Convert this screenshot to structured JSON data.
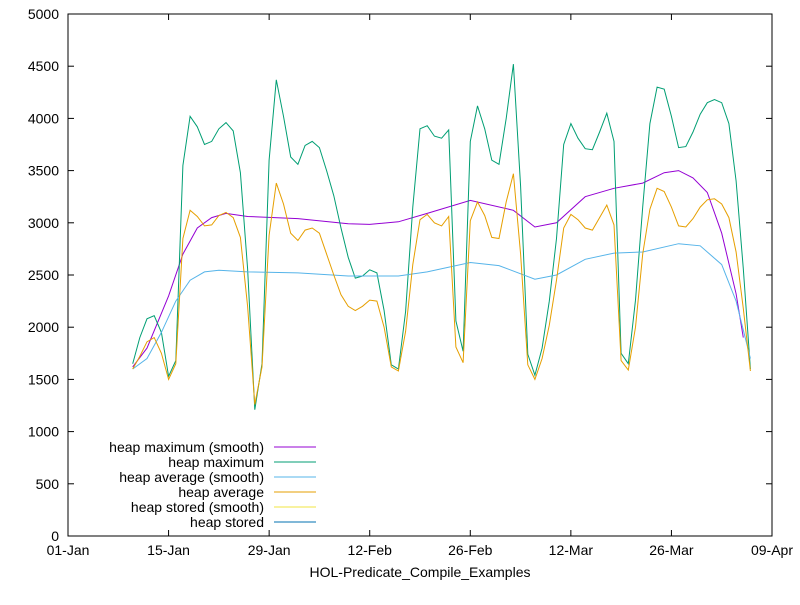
{
  "chart_data": {
    "type": "line",
    "title": "",
    "xlabel": "HOL-Predicate_Compile_Examples",
    "ylabel": "",
    "xlim": [
      "2025-01-01",
      "2025-04-09"
    ],
    "ylim": [
      0,
      5000
    ],
    "grid": false,
    "legend": "bottom-left",
    "x_ticks": [
      {
        "date": "2025-01-01",
        "label": "01-Jan"
      },
      {
        "date": "2025-01-15",
        "label": "15-Jan"
      },
      {
        "date": "2025-01-29",
        "label": "29-Jan"
      },
      {
        "date": "2025-02-12",
        "label": "12-Feb"
      },
      {
        "date": "2025-02-26",
        "label": "26-Feb"
      },
      {
        "date": "2025-03-12",
        "label": "12-Mar"
      },
      {
        "date": "2025-03-26",
        "label": "26-Mar"
      },
      {
        "date": "2025-04-09",
        "label": "09-Apr"
      }
    ],
    "y_ticks": [
      0,
      500,
      1000,
      1500,
      2000,
      2500,
      3000,
      3500,
      4000,
      4500,
      5000
    ],
    "series": [
      {
        "name": "heap maximum (smooth)",
        "color": "#9400d3",
        "points": [
          [
            "2025-01-10",
            1620
          ],
          [
            "2025-01-12",
            1800
          ],
          [
            "2025-01-15",
            2300
          ],
          [
            "2025-01-17",
            2700
          ],
          [
            "2025-01-19",
            2950
          ],
          [
            "2025-01-21",
            3050
          ],
          [
            "2025-01-23",
            3090
          ],
          [
            "2025-01-26",
            3060
          ],
          [
            "2025-02-02",
            3040
          ],
          [
            "2025-02-09",
            2990
          ],
          [
            "2025-02-12",
            2985
          ],
          [
            "2025-02-16",
            3010
          ],
          [
            "2025-02-20",
            3090
          ],
          [
            "2025-02-26",
            3215
          ],
          [
            "2025-03-04",
            3120
          ],
          [
            "2025-03-07",
            2960
          ],
          [
            "2025-03-10",
            3000
          ],
          [
            "2025-03-14",
            3250
          ],
          [
            "2025-03-18",
            3330
          ],
          [
            "2025-03-22",
            3380
          ],
          [
            "2025-03-25",
            3480
          ],
          [
            "2025-03-27",
            3500
          ],
          [
            "2025-03-29",
            3430
          ],
          [
            "2025-03-31",
            3290
          ],
          [
            "2025-04-02",
            2900
          ],
          [
            "2025-04-04",
            2320
          ],
          [
            "2025-04-05",
            1900
          ]
        ]
      },
      {
        "name": "heap maximum",
        "color": "#009e73",
        "points": [
          [
            "2025-01-10",
            1650
          ],
          [
            "2025-01-11",
            1900
          ],
          [
            "2025-01-12",
            2080
          ],
          [
            "2025-01-13",
            2110
          ],
          [
            "2025-01-14",
            1950
          ],
          [
            "2025-01-15",
            1530
          ],
          [
            "2025-01-16",
            1680
          ],
          [
            "2025-01-17",
            3550
          ],
          [
            "2025-01-18",
            4020
          ],
          [
            "2025-01-19",
            3920
          ],
          [
            "2025-01-20",
            3750
          ],
          [
            "2025-01-21",
            3780
          ],
          [
            "2025-01-22",
            3900
          ],
          [
            "2025-01-23",
            3960
          ],
          [
            "2025-01-24",
            3880
          ],
          [
            "2025-01-25",
            3480
          ],
          [
            "2025-01-26",
            2560
          ],
          [
            "2025-01-27",
            1210
          ],
          [
            "2025-01-28",
            1650
          ],
          [
            "2025-01-29",
            3600
          ],
          [
            "2025-01-30",
            4370
          ],
          [
            "2025-01-31",
            4020
          ],
          [
            "2025-02-01",
            3630
          ],
          [
            "2025-02-02",
            3560
          ],
          [
            "2025-02-03",
            3740
          ],
          [
            "2025-02-04",
            3780
          ],
          [
            "2025-02-05",
            3720
          ],
          [
            "2025-02-06",
            3500
          ],
          [
            "2025-02-07",
            3260
          ],
          [
            "2025-02-08",
            2950
          ],
          [
            "2025-02-09",
            2670
          ],
          [
            "2025-02-10",
            2470
          ],
          [
            "2025-02-11",
            2490
          ],
          [
            "2025-02-12",
            2550
          ],
          [
            "2025-02-13",
            2520
          ],
          [
            "2025-02-14",
            2160
          ],
          [
            "2025-02-15",
            1640
          ],
          [
            "2025-02-16",
            1600
          ],
          [
            "2025-02-17",
            2150
          ],
          [
            "2025-02-18",
            3150
          ],
          [
            "2025-02-19",
            3900
          ],
          [
            "2025-02-20",
            3930
          ],
          [
            "2025-02-21",
            3830
          ],
          [
            "2025-02-22",
            3810
          ],
          [
            "2025-02-23",
            3890
          ],
          [
            "2025-02-24",
            2060
          ],
          [
            "2025-02-25",
            1770
          ],
          [
            "2025-02-26",
            3780
          ],
          [
            "2025-02-27",
            4120
          ],
          [
            "2025-02-28",
            3900
          ],
          [
            "2025-03-01",
            3600
          ],
          [
            "2025-03-02",
            3560
          ],
          [
            "2025-03-03",
            4000
          ],
          [
            "2025-03-04",
            4520
          ],
          [
            "2025-03-05",
            3350
          ],
          [
            "2025-03-06",
            1740
          ],
          [
            "2025-03-07",
            1540
          ],
          [
            "2025-03-08",
            1800
          ],
          [
            "2025-03-09",
            2250
          ],
          [
            "2025-03-10",
            2850
          ],
          [
            "2025-03-11",
            3750
          ],
          [
            "2025-03-12",
            3950
          ],
          [
            "2025-03-13",
            3810
          ],
          [
            "2025-03-14",
            3710
          ],
          [
            "2025-03-15",
            3700
          ],
          [
            "2025-03-16",
            3870
          ],
          [
            "2025-03-17",
            4050
          ],
          [
            "2025-03-18",
            3780
          ],
          [
            "2025-03-19",
            1750
          ],
          [
            "2025-03-20",
            1650
          ],
          [
            "2025-03-21",
            2260
          ],
          [
            "2025-03-22",
            3150
          ],
          [
            "2025-03-23",
            3950
          ],
          [
            "2025-03-24",
            4300
          ],
          [
            "2025-03-25",
            4280
          ],
          [
            "2025-03-26",
            4020
          ],
          [
            "2025-03-27",
            3720
          ],
          [
            "2025-03-28",
            3730
          ],
          [
            "2025-03-29",
            3870
          ],
          [
            "2025-03-30",
            4040
          ],
          [
            "2025-03-31",
            4150
          ],
          [
            "2025-04-01",
            4180
          ],
          [
            "2025-04-02",
            4150
          ],
          [
            "2025-04-03",
            3950
          ],
          [
            "2025-04-04",
            3400
          ],
          [
            "2025-04-05",
            2560
          ],
          [
            "2025-04-06",
            1600
          ]
        ]
      },
      {
        "name": "heap average (smooth)",
        "color": "#56b4e9",
        "points": [
          [
            "2025-01-10",
            1600
          ],
          [
            "2025-01-12",
            1700
          ],
          [
            "2025-01-14",
            1950
          ],
          [
            "2025-01-16",
            2250
          ],
          [
            "2025-01-18",
            2450
          ],
          [
            "2025-01-20",
            2530
          ],
          [
            "2025-01-22",
            2545
          ],
          [
            "2025-01-26",
            2530
          ],
          [
            "2025-02-02",
            2520
          ],
          [
            "2025-02-09",
            2490
          ],
          [
            "2025-02-16",
            2490
          ],
          [
            "2025-02-20",
            2530
          ],
          [
            "2025-02-26",
            2620
          ],
          [
            "2025-03-02",
            2590
          ],
          [
            "2025-03-07",
            2460
          ],
          [
            "2025-03-10",
            2500
          ],
          [
            "2025-03-14",
            2650
          ],
          [
            "2025-03-18",
            2710
          ],
          [
            "2025-03-22",
            2720
          ],
          [
            "2025-03-27",
            2800
          ],
          [
            "2025-03-30",
            2780
          ],
          [
            "2025-04-02",
            2600
          ],
          [
            "2025-04-04",
            2250
          ],
          [
            "2025-04-06",
            1700
          ]
        ]
      },
      {
        "name": "heap average",
        "color": "#e69f00",
        "points": [
          [
            "2025-01-10",
            1600
          ],
          [
            "2025-01-11",
            1720
          ],
          [
            "2025-01-12",
            1860
          ],
          [
            "2025-01-13",
            1900
          ],
          [
            "2025-01-14",
            1750
          ],
          [
            "2025-01-15",
            1500
          ],
          [
            "2025-01-16",
            1650
          ],
          [
            "2025-01-17",
            2850
          ],
          [
            "2025-01-18",
            3120
          ],
          [
            "2025-01-19",
            3060
          ],
          [
            "2025-01-20",
            2970
          ],
          [
            "2025-01-21",
            2980
          ],
          [
            "2025-01-22",
            3070
          ],
          [
            "2025-01-23",
            3100
          ],
          [
            "2025-01-24",
            3050
          ],
          [
            "2025-01-25",
            2860
          ],
          [
            "2025-01-26",
            2200
          ],
          [
            "2025-01-27",
            1260
          ],
          [
            "2025-01-28",
            1620
          ],
          [
            "2025-01-29",
            2880
          ],
          [
            "2025-01-30",
            3380
          ],
          [
            "2025-01-31",
            3180
          ],
          [
            "2025-02-01",
            2900
          ],
          [
            "2025-02-02",
            2830
          ],
          [
            "2025-02-03",
            2930
          ],
          [
            "2025-02-04",
            2950
          ],
          [
            "2025-02-05",
            2900
          ],
          [
            "2025-02-06",
            2700
          ],
          [
            "2025-02-07",
            2500
          ],
          [
            "2025-02-08",
            2310
          ],
          [
            "2025-02-09",
            2200
          ],
          [
            "2025-02-10",
            2160
          ],
          [
            "2025-02-11",
            2200
          ],
          [
            "2025-02-12",
            2260
          ],
          [
            "2025-02-13",
            2250
          ],
          [
            "2025-02-14",
            2000
          ],
          [
            "2025-02-15",
            1620
          ],
          [
            "2025-02-16",
            1580
          ],
          [
            "2025-02-17",
            1960
          ],
          [
            "2025-02-18",
            2600
          ],
          [
            "2025-02-19",
            3030
          ],
          [
            "2025-02-20",
            3080
          ],
          [
            "2025-02-21",
            3000
          ],
          [
            "2025-02-22",
            2970
          ],
          [
            "2025-02-23",
            3060
          ],
          [
            "2025-02-24",
            1810
          ],
          [
            "2025-02-25",
            1660
          ],
          [
            "2025-02-26",
            3020
          ],
          [
            "2025-02-27",
            3200
          ],
          [
            "2025-02-28",
            3070
          ],
          [
            "2025-03-01",
            2860
          ],
          [
            "2025-03-02",
            2850
          ],
          [
            "2025-03-03",
            3200
          ],
          [
            "2025-03-04",
            3470
          ],
          [
            "2025-03-05",
            2700
          ],
          [
            "2025-03-06",
            1640
          ],
          [
            "2025-03-07",
            1500
          ],
          [
            "2025-03-08",
            1700
          ],
          [
            "2025-03-09",
            2020
          ],
          [
            "2025-03-10",
            2450
          ],
          [
            "2025-03-11",
            2950
          ],
          [
            "2025-03-12",
            3080
          ],
          [
            "2025-03-13",
            3030
          ],
          [
            "2025-03-14",
            2950
          ],
          [
            "2025-03-15",
            2930
          ],
          [
            "2025-03-16",
            3050
          ],
          [
            "2025-03-17",
            3170
          ],
          [
            "2025-03-18",
            2980
          ],
          [
            "2025-03-19",
            1680
          ],
          [
            "2025-03-20",
            1590
          ],
          [
            "2025-03-21",
            2000
          ],
          [
            "2025-03-22",
            2700
          ],
          [
            "2025-03-23",
            3130
          ],
          [
            "2025-03-24",
            3330
          ],
          [
            "2025-03-25",
            3300
          ],
          [
            "2025-03-26",
            3150
          ],
          [
            "2025-03-27",
            2970
          ],
          [
            "2025-03-28",
            2960
          ],
          [
            "2025-03-29",
            3040
          ],
          [
            "2025-03-30",
            3150
          ],
          [
            "2025-03-31",
            3220
          ],
          [
            "2025-04-01",
            3230
          ],
          [
            "2025-04-02",
            3180
          ],
          [
            "2025-04-03",
            3050
          ],
          [
            "2025-04-04",
            2720
          ],
          [
            "2025-04-05",
            2180
          ],
          [
            "2025-04-06",
            1580
          ]
        ]
      },
      {
        "name": "heap stored (smooth)",
        "color": "#f0e442",
        "points": []
      },
      {
        "name": "heap stored",
        "color": "#0072b2",
        "points": []
      }
    ]
  }
}
